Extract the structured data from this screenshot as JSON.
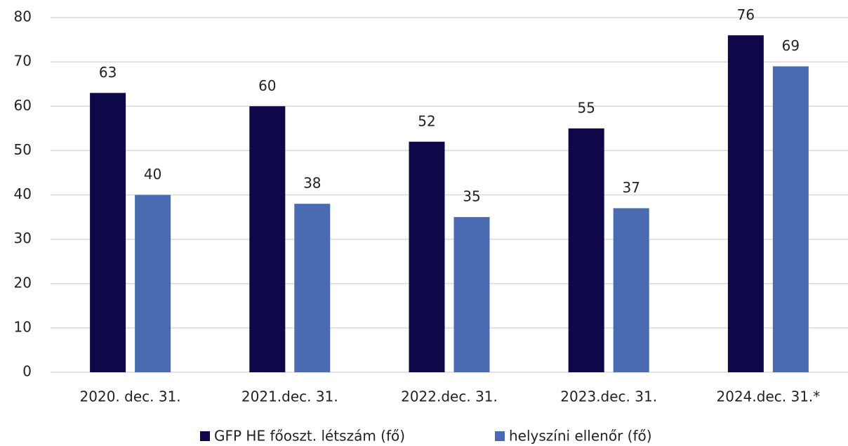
{
  "chart_data": {
    "type": "bar",
    "categories": [
      "2020. dec. 31.",
      "2021.dec. 31.",
      "2022.dec. 31.",
      "2023.dec. 31.",
      "2024.dec. 31.*"
    ],
    "series": [
      {
        "name": "GFP HE főoszt. létszám (fő)",
        "color": "#0e0848",
        "values": [
          63,
          60,
          52,
          55,
          76
        ]
      },
      {
        "name": "helyszíni ellenőr (fő)",
        "color": "#4a6bb2",
        "values": [
          40,
          38,
          35,
          37,
          69
        ]
      }
    ],
    "ylim": [
      0,
      80
    ],
    "yticks": [
      0,
      10,
      20,
      30,
      40,
      50,
      60,
      70,
      80
    ],
    "grid": true,
    "legend": "bottom"
  }
}
